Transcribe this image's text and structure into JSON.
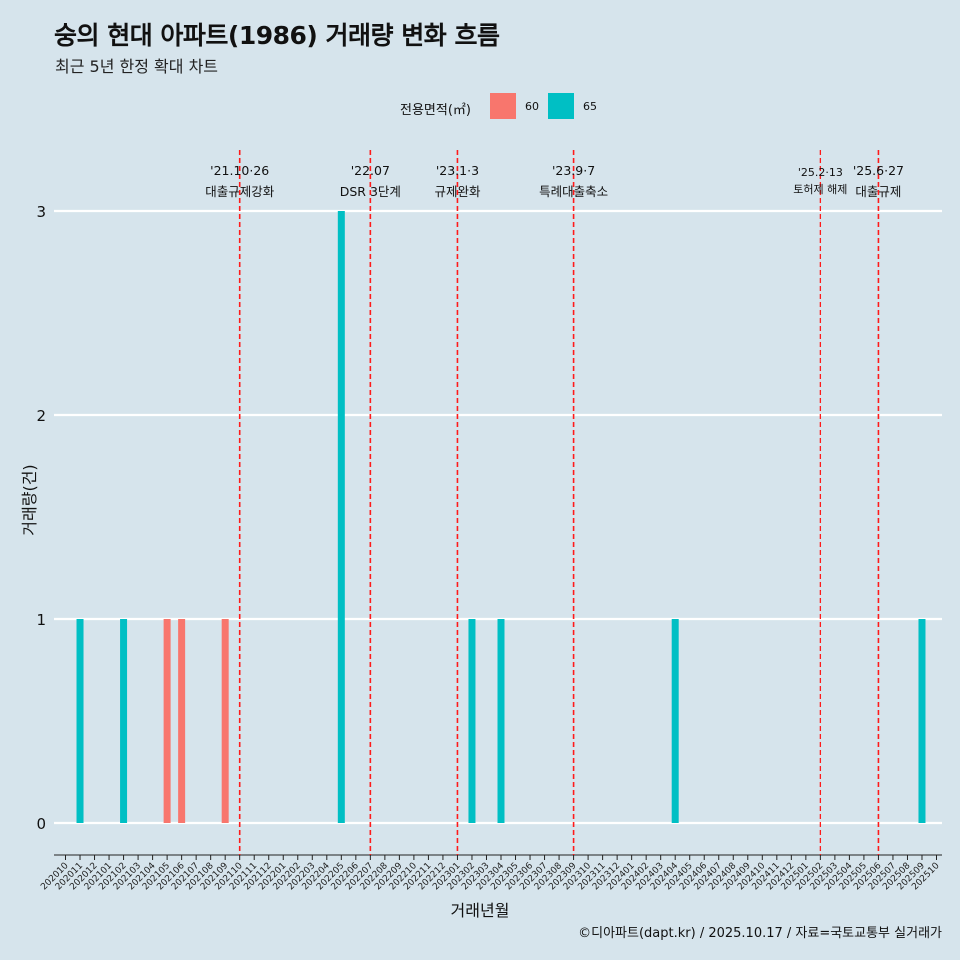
{
  "chart_data": {
    "type": "bar",
    "title": "숭의 현대 아파트(1986) 거래량 변화 흐름",
    "subtitle": "최근 5년 한정 확대 차트",
    "xlabel": "거래년월",
    "ylabel": "거래량(건)",
    "ylim": [
      0,
      3
    ],
    "yticks": [
      0,
      1,
      2,
      3
    ],
    "legend": {
      "title": "전용면적(㎡)",
      "position": "top",
      "entries": [
        "60",
        "65"
      ]
    },
    "colors": {
      "60": "#f8766d",
      "65": "#00bfc4"
    },
    "categories": [
      "202010",
      "202011",
      "202012",
      "202101",
      "202102",
      "202103",
      "202104",
      "202105",
      "202106",
      "202107",
      "202108",
      "202109",
      "202110",
      "202111",
      "202112",
      "202201",
      "202202",
      "202203",
      "202204",
      "202205",
      "202206",
      "202207",
      "202208",
      "202209",
      "202210",
      "202211",
      "202212",
      "202301",
      "202302",
      "202303",
      "202304",
      "202305",
      "202306",
      "202307",
      "202308",
      "202309",
      "202310",
      "202311",
      "202312",
      "202401",
      "202402",
      "202403",
      "202404",
      "202405",
      "202406",
      "202407",
      "202408",
      "202409",
      "202410",
      "202411",
      "202412",
      "202501",
      "202502",
      "202503",
      "202504",
      "202505",
      "202506",
      "202507",
      "202508",
      "202509",
      "202510"
    ],
    "bars": [
      {
        "month": "202011",
        "area": "65",
        "value": 1
      },
      {
        "month": "202102",
        "area": "65",
        "value": 1
      },
      {
        "month": "202105",
        "area": "60",
        "value": 1
      },
      {
        "month": "202106",
        "area": "60",
        "value": 1
      },
      {
        "month": "202109",
        "area": "60",
        "value": 1
      },
      {
        "month": "202205",
        "area": "65",
        "value": 3
      },
      {
        "month": "202302",
        "area": "65",
        "value": 1
      },
      {
        "month": "202304",
        "area": "65",
        "value": 1
      },
      {
        "month": "202404",
        "area": "65",
        "value": 1
      },
      {
        "month": "202509",
        "area": "65",
        "value": 1
      }
    ],
    "events": [
      {
        "month": "202110",
        "date": "'21.10·26",
        "label": "대출규제강화",
        "small": false,
        "offset": 0
      },
      {
        "month": "202207",
        "date": "'22.07",
        "label": "DSR 3단계",
        "small": false,
        "offset": 0
      },
      {
        "month": "202301",
        "date": "'23.1·3",
        "label": "규제완화",
        "small": false,
        "offset": 0
      },
      {
        "month": "202309",
        "date": "'23.9·7",
        "label": "특례대출축소",
        "small": false,
        "offset": 0
      },
      {
        "month": "202502",
        "date": "'25.2·13",
        "label": "토허제 해제",
        "small": true,
        "offset": 0
      },
      {
        "month": "202506",
        "date": "'25.6·27",
        "label": "대출규제",
        "small": false,
        "offset": 0
      }
    ],
    "caption": "©디아파트(dapt.kr) / 2025.10.17 / 자료=국토교통부 실거래가"
  }
}
